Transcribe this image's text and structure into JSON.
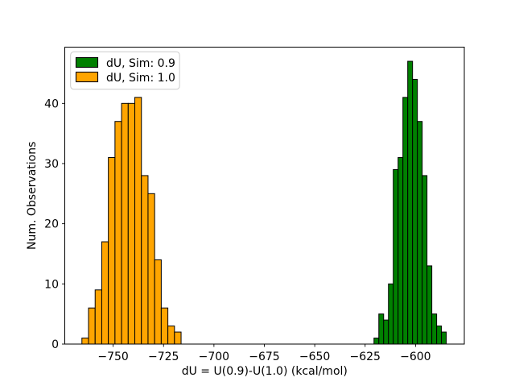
{
  "figure": {
    "background": "#ffffff",
    "axes_background": "#ffffff",
    "spine_color": "#000000",
    "tick_color": "#000000",
    "text_color": "#000000"
  },
  "chart_data": {
    "type": "bar",
    "subtype": "histogram",
    "title": "",
    "xlabel": "dU = U(0.9)-U(1.0) (kcal/mol)",
    "ylabel": "Num. Observations",
    "xlim": [
      -774.0,
      -575.8
    ],
    "ylim": [
      0,
      49.35
    ],
    "xticks": [
      -750,
      -725,
      -700,
      -675,
      -650,
      -625,
      -600
    ],
    "xtick_labels": [
      "−750",
      "−725",
      "−700",
      "−675",
      "−650",
      "−625",
      "−600"
    ],
    "yticks": [
      0,
      10,
      20,
      30,
      40
    ],
    "ytick_labels": [
      "0",
      "10",
      "20",
      "30",
      "40"
    ],
    "grid": false,
    "legend": {
      "position": "upper left",
      "border_color": "#cccccc",
      "background": "#ffffff"
    },
    "series": [
      {
        "name": "dU, Sim: 0.9",
        "color": "#008000",
        "edge_color": "#000000",
        "bin_start": -620.6,
        "bin_width": 2.39,
        "counts": [
          1,
          5,
          4,
          10,
          29,
          31,
          41,
          47,
          44,
          37,
          28,
          13,
          5,
          3,
          2
        ],
        "total_observations": 300
      },
      {
        "name": "dU, Sim: 1.0",
        "color": "#ffa500",
        "edge_color": "#000000",
        "bin_start": -765.5,
        "bin_width": 3.28,
        "counts": [
          1,
          6,
          9,
          17,
          31,
          37,
          40,
          40,
          41,
          28,
          25,
          14,
          6,
          3,
          2
        ],
        "total_observations": 300
      }
    ]
  }
}
